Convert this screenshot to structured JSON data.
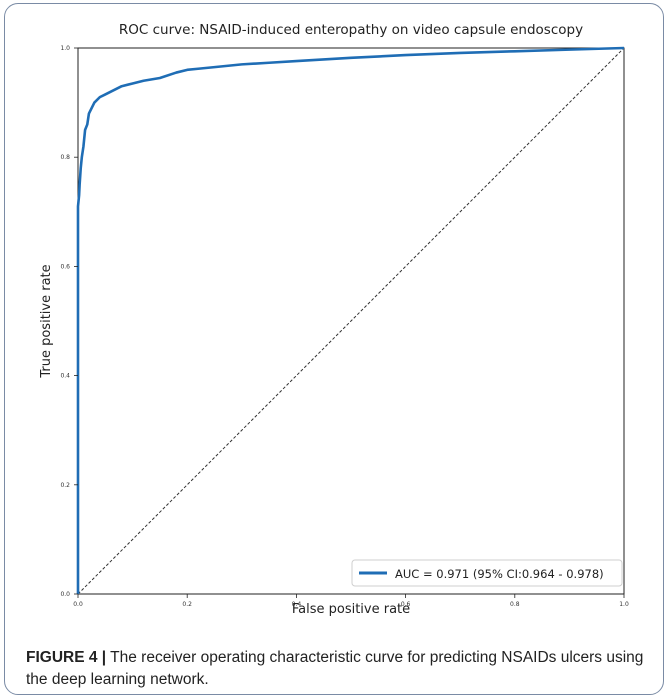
{
  "chart_data": {
    "type": "line",
    "title": "ROC curve: NSAID-induced enteropathy on video capsule endoscopy",
    "xlabel": "False positive rate",
    "ylabel": "True positive rate",
    "xlim": [
      0,
      1
    ],
    "ylim": [
      0,
      1
    ],
    "xticks": [
      "0.0",
      "0.2",
      "0.4",
      "0.6",
      "0.8",
      "1.0"
    ],
    "yticks": [
      "0.0",
      "0.2",
      "0.4",
      "0.6",
      "0.8",
      "1.0"
    ],
    "grid": false,
    "legend_position": "bottom-right",
    "series": [
      {
        "name": "AUC = 0.971 (95% CI:0.964 - 0.978)",
        "color": "#1f6db5",
        "x": [
          0.0,
          0.0,
          0.0,
          0.002,
          0.003,
          0.005,
          0.007,
          0.01,
          0.013,
          0.017,
          0.02,
          0.025,
          0.03,
          0.04,
          0.05,
          0.06,
          0.07,
          0.08,
          0.1,
          0.12,
          0.15,
          0.18,
          0.2,
          0.22,
          0.25,
          0.3,
          0.35,
          0.4,
          0.5,
          0.6,
          0.7,
          0.8,
          0.9,
          1.0
        ],
        "y": [
          0.0,
          0.53,
          0.71,
          0.73,
          0.75,
          0.78,
          0.8,
          0.82,
          0.85,
          0.86,
          0.88,
          0.89,
          0.9,
          0.91,
          0.915,
          0.92,
          0.925,
          0.93,
          0.935,
          0.94,
          0.945,
          0.955,
          0.96,
          0.962,
          0.965,
          0.97,
          0.973,
          0.976,
          0.982,
          0.987,
          0.991,
          0.994,
          0.997,
          1.0
        ]
      },
      {
        "name": "",
        "color": "#333333",
        "style": "dashed",
        "x": [
          0,
          1
        ],
        "y": [
          0,
          1
        ]
      }
    ]
  },
  "caption": {
    "label": "FIGURE 4 |",
    "text": " The receiver operating characteristic curve for predicting NSAIDs ulcers using the deep learning network."
  }
}
